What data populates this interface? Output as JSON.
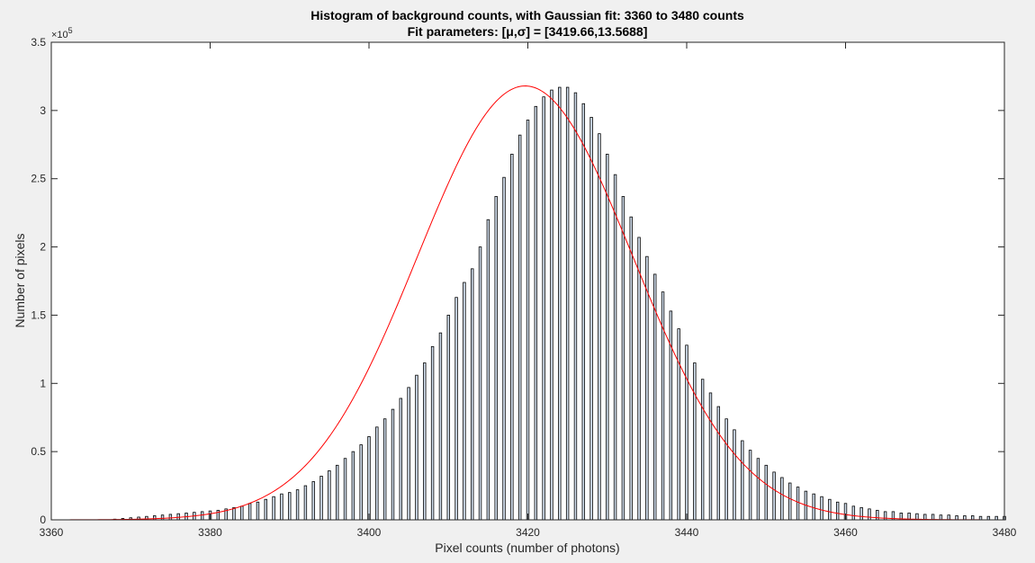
{
  "chart_data": {
    "type": "bar",
    "title": "Histogram of background counts, with Gaussian fit: 3360 to 3480 counts",
    "subtitle": "Fit parameters: [μ,σ] = [3419.66,13.5688]",
    "xlabel": "Pixel counts (number of photons)",
    "ylabel": "Number of pixels",
    "xlim": [
      3360,
      3480
    ],
    "ylim": [
      0,
      350000
    ],
    "y_exponent_label": "×10",
    "y_exponent_power": "5",
    "x_ticks": [
      3360,
      3380,
      3400,
      3420,
      3440,
      3460,
      3480
    ],
    "x_tick_labels": [
      "3360",
      "3380",
      "3400",
      "3420",
      "3440",
      "3460",
      "3480"
    ],
    "y_ticks": [
      0,
      50000,
      100000,
      150000,
      200000,
      250000,
      300000,
      350000
    ],
    "y_tick_labels": [
      "0",
      "0.5",
      "1",
      "1.5",
      "2",
      "2.5",
      "3",
      "3.5"
    ],
    "grid": false,
    "colors": {
      "bar_fill": "#d3e0ef",
      "bar_edge": "#000000",
      "fit": "#ff0000",
      "axes_bg": "#ffffff",
      "figure_bg": "#f0f0f0"
    },
    "series": [
      {
        "x": [
          3360,
          3361,
          3362,
          3363,
          3364,
          3365,
          3366,
          3367,
          3368,
          3369,
          3370,
          3371,
          3372,
          3373,
          3374,
          3375,
          3376,
          3377,
          3378,
          3379,
          3380,
          3381,
          3382,
          3383,
          3384,
          3385,
          3386,
          3387,
          3388,
          3389,
          3390,
          3391,
          3392,
          3393,
          3394,
          3395,
          3396,
          3397,
          3398,
          3399,
          3400,
          3401,
          3402,
          3403,
          3404,
          3405,
          3406,
          3407,
          3408,
          3409,
          3410,
          3411,
          3412,
          3413,
          3414,
          3415,
          3416,
          3417,
          3418,
          3419,
          3420,
          3421,
          3422,
          3423,
          3424,
          3425,
          3426,
          3427,
          3428,
          3429,
          3430,
          3431,
          3432,
          3433,
          3434,
          3435,
          3436,
          3437,
          3438,
          3439,
          3440,
          3441,
          3442,
          3443,
          3444,
          3445,
          3446,
          3447,
          3448,
          3449,
          3450,
          3451,
          3452,
          3453,
          3454,
          3455,
          3456,
          3457,
          3458,
          3459,
          3460,
          3461,
          3462,
          3463,
          3464,
          3465,
          3466,
          3467,
          3468,
          3469,
          3470,
          3471,
          3472,
          3473,
          3474,
          3475,
          3476,
          3477,
          3478,
          3479,
          3480
        ],
        "values": [
          0,
          0,
          0,
          0,
          0,
          0,
          0,
          0,
          500,
          1000,
          1500,
          2000,
          2500,
          3000,
          3500,
          4000,
          4500,
          5000,
          5500,
          6000,
          6500,
          7000,
          8000,
          9000,
          10000,
          12000,
          13000,
          15000,
          17000,
          19000,
          20000,
          22000,
          25000,
          28000,
          32000,
          36000,
          40000,
          45000,
          50000,
          55000,
          61000,
          68000,
          74000,
          81000,
          89000,
          97000,
          106000,
          115000,
          127000,
          137000,
          150000,
          163000,
          174000,
          184000,
          200000,
          220000,
          237000,
          251000,
          268000,
          282000,
          293000,
          303000,
          310000,
          315000,
          317000,
          317000,
          313000,
          305000,
          295000,
          283000,
          268000,
          253000,
          237000,
          222000,
          207000,
          193000,
          180000,
          167000,
          153000,
          140000,
          128000,
          115000,
          103000,
          93000,
          83000,
          74000,
          66000,
          58000,
          51000,
          45000,
          40000,
          35000,
          31000,
          27000,
          24000,
          21000,
          19000,
          17000,
          15000,
          13000,
          12000,
          10000,
          9000,
          8000,
          7000,
          6000,
          6000,
          5000,
          5000,
          4500,
          4000,
          4000,
          3500,
          3500,
          3000,
          3000,
          3000,
          2500,
          2500,
          2500,
          2500
        ]
      }
    ],
    "fit": {
      "mu": 3419.66,
      "sigma": 13.5688,
      "amplitude": 318000
    }
  }
}
